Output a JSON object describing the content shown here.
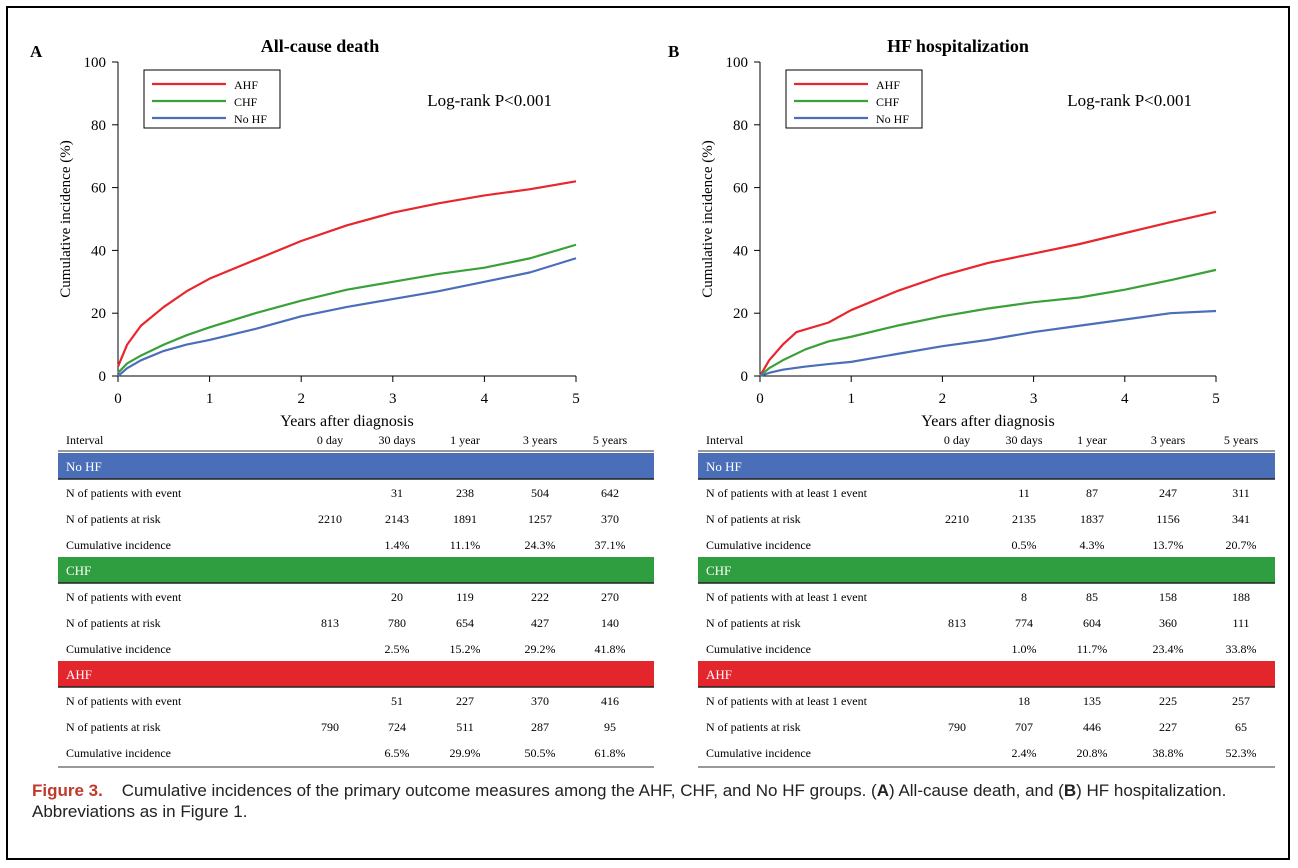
{
  "colors": {
    "AHF": "#e8262b",
    "CHF": "#3aa13a",
    "No HF": "#4a6fb8",
    "band_no_hf": "#4a6fb8",
    "band_chf": "#2f9e40",
    "band_ahf": "#e2262b"
  },
  "chart_data": [
    {
      "type": "line",
      "panel_label": "A",
      "title": "All-cause death",
      "xlabel": "Years after diagnosis",
      "ylabel": "Cumulative incidence (%)",
      "xlim": [
        0,
        5
      ],
      "ylim": [
        0,
        100
      ],
      "xticks": [
        "0",
        "1",
        "2",
        "3",
        "4",
        "5"
      ],
      "yticks": [
        "0",
        "20",
        "40",
        "60",
        "80",
        "100"
      ],
      "legend": [
        "AHF",
        "CHF",
        "No HF"
      ],
      "legend_position": "top-left",
      "annotation": "Log-rank P<0.001",
      "series": [
        {
          "name": "AHF",
          "color": "#e8262b",
          "points": [
            [
              0,
              3
            ],
            [
              0.1,
              10
            ],
            [
              0.25,
              16
            ],
            [
              0.5,
              22
            ],
            [
              0.75,
              27
            ],
            [
              1,
              31
            ],
            [
              1.5,
              37
            ],
            [
              2,
              43
            ],
            [
              2.5,
              48
            ],
            [
              3,
              52
            ],
            [
              3.5,
              55
            ],
            [
              4,
              57.5
            ],
            [
              4.5,
              59.5
            ],
            [
              5,
              62
            ]
          ]
        },
        {
          "name": "CHF",
          "color": "#3aa13a",
          "points": [
            [
              0,
              1
            ],
            [
              0.1,
              4
            ],
            [
              0.25,
              6.5
            ],
            [
              0.5,
              10
            ],
            [
              0.75,
              13
            ],
            [
              1,
              15.5
            ],
            [
              1.5,
              20
            ],
            [
              2,
              24
            ],
            [
              2.5,
              27.5
            ],
            [
              3,
              30
            ],
            [
              3.5,
              32.5
            ],
            [
              4,
              34.5
            ],
            [
              4.5,
              37.5
            ],
            [
              5,
              41.8
            ]
          ]
        },
        {
          "name": "No HF",
          "color": "#4a6fb8",
          "points": [
            [
              0,
              0
            ],
            [
              0.1,
              2.5
            ],
            [
              0.25,
              5
            ],
            [
              0.5,
              8
            ],
            [
              0.75,
              10
            ],
            [
              1,
              11.5
            ],
            [
              1.5,
              15
            ],
            [
              2,
              19
            ],
            [
              2.5,
              22
            ],
            [
              3,
              24.5
            ],
            [
              3.5,
              27
            ],
            [
              4,
              30
            ],
            [
              4.5,
              33
            ],
            [
              5,
              37.5
            ]
          ]
        }
      ],
      "table": {
        "header": [
          "Interval",
          "0 day",
          "30 days",
          "1 year",
          "3 years",
          "5 years"
        ],
        "groups": [
          {
            "name": "No HF",
            "rows": [
              [
                "N of patients with event",
                "",
                "31",
                "238",
                "504",
                "642"
              ],
              [
                "N of patients at risk",
                "2210",
                "2143",
                "1891",
                "1257",
                "370"
              ],
              [
                "Cumulative incidence",
                "",
                "1.4%",
                "11.1%",
                "24.3%",
                "37.1%"
              ]
            ]
          },
          {
            "name": "CHF",
            "rows": [
              [
                "N of patients with event",
                "",
                "20",
                "119",
                "222",
                "270"
              ],
              [
                "N of patients at risk",
                "813",
                "780",
                "654",
                "427",
                "140"
              ],
              [
                "Cumulative incidence",
                "",
                "2.5%",
                "15.2%",
                "29.2%",
                "41.8%"
              ]
            ]
          },
          {
            "name": "AHF",
            "rows": [
              [
                "N of patients with event",
                "",
                "51",
                "227",
                "370",
                "416"
              ],
              [
                "N of patients at risk",
                "790",
                "724",
                "511",
                "287",
                "95"
              ],
              [
                "Cumulative incidence",
                "",
                "6.5%",
                "29.9%",
                "50.5%",
                "61.8%"
              ]
            ]
          }
        ]
      }
    },
    {
      "type": "line",
      "panel_label": "B",
      "title": "HF hospitalization",
      "xlabel": "Years after diagnosis",
      "ylabel": "Cumulative incidence (%)",
      "xlim": [
        0,
        5
      ],
      "ylim": [
        0,
        100
      ],
      "xticks": [
        "0",
        "1",
        "2",
        "3",
        "4",
        "5"
      ],
      "yticks": [
        "0",
        "20",
        "40",
        "60",
        "80",
        "100"
      ],
      "legend": [
        "AHF",
        "CHF",
        "No HF"
      ],
      "legend_position": "top-left",
      "annotation": "Log-rank P<0.001",
      "series": [
        {
          "name": "AHF",
          "color": "#e8262b",
          "points": [
            [
              0,
              0
            ],
            [
              0.1,
              5
            ],
            [
              0.25,
              10
            ],
            [
              0.4,
              14
            ],
            [
              0.75,
              17
            ],
            [
              1,
              21
            ],
            [
              1.5,
              27
            ],
            [
              2,
              32
            ],
            [
              2.5,
              36
            ],
            [
              3,
              39
            ],
            [
              3.5,
              42
            ],
            [
              4,
              45.5
            ],
            [
              4.5,
              49
            ],
            [
              5,
              52.3
            ]
          ]
        },
        {
          "name": "CHF",
          "color": "#3aa13a",
          "points": [
            [
              0,
              0
            ],
            [
              0.1,
              2.5
            ],
            [
              0.25,
              5
            ],
            [
              0.5,
              8.5
            ],
            [
              0.75,
              11
            ],
            [
              1,
              12.5
            ],
            [
              1.5,
              16
            ],
            [
              2,
              19
            ],
            [
              2.5,
              21.5
            ],
            [
              3,
              23.5
            ],
            [
              3.5,
              25
            ],
            [
              4,
              27.5
            ],
            [
              4.5,
              30.5
            ],
            [
              5,
              33.8
            ]
          ]
        },
        {
          "name": "No HF",
          "color": "#4a6fb8",
          "points": [
            [
              0,
              0
            ],
            [
              0.1,
              1
            ],
            [
              0.25,
              2
            ],
            [
              0.5,
              3
            ],
            [
              0.75,
              3.8
            ],
            [
              1,
              4.5
            ],
            [
              1.5,
              7
            ],
            [
              2,
              9.5
            ],
            [
              2.5,
              11.5
            ],
            [
              3,
              14
            ],
            [
              3.5,
              16
            ],
            [
              4,
              18
            ],
            [
              4.5,
              20
            ],
            [
              5,
              20.7
            ]
          ]
        }
      ],
      "table": {
        "header": [
          "Interval",
          "0 day",
          "30 days",
          "1 year",
          "3 years",
          "5 years"
        ],
        "groups": [
          {
            "name": "No HF",
            "rows": [
              [
                "N of patients with at least 1 event",
                "",
                "11",
                "87",
                "247",
                "311"
              ],
              [
                "N of patients at risk",
                "2210",
                "2135",
                "1837",
                "1156",
                "341"
              ],
              [
                "Cumulative incidence",
                "",
                "0.5%",
                "4.3%",
                "13.7%",
                "20.7%"
              ]
            ]
          },
          {
            "name": "CHF",
            "rows": [
              [
                "N of patients with at least 1 event",
                "",
                "8",
                "85",
                "158",
                "188"
              ],
              [
                "N of patients at risk",
                "813",
                "774",
                "604",
                "360",
                "111"
              ],
              [
                "Cumulative incidence",
                "",
                "1.0%",
                "11.7%",
                "23.4%",
                "33.8%"
              ]
            ]
          },
          {
            "name": "AHF",
            "rows": [
              [
                "N of patients with at least 1 event",
                "",
                "18",
                "135",
                "225",
                "257"
              ],
              [
                "N of patients at risk",
                "790",
                "707",
                "446",
                "227",
                "65"
              ],
              [
                "Cumulative incidence",
                "",
                "2.4%",
                "20.8%",
                "38.8%",
                "52.3%"
              ]
            ]
          }
        ]
      }
    }
  ],
  "caption": {
    "label": "Figure 3.",
    "text_1": "Cumulative incidences of the primary outcome measures among the AHF, CHF, and No HF groups. (",
    "a": "A",
    "text_2": ") All-cause death, and (",
    "b": "B",
    "text_3": ") HF hospitalization. Abbreviations as in Figure 1."
  }
}
